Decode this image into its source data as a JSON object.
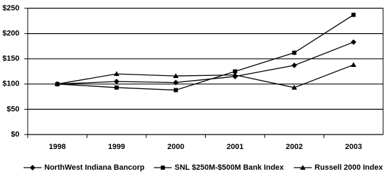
{
  "chart_data": {
    "type": "line",
    "categories": [
      "1998",
      "1999",
      "2000",
      "2001",
      "2002",
      "2003"
    ],
    "series": [
      {
        "name": "NorthWest Indiana Bancorp",
        "color": "#000000",
        "marker": "diamond",
        "values": [
          100,
          105,
          103,
          115,
          137,
          183
        ]
      },
      {
        "name": "SNL $250M-$500M Bank Index",
        "color": "#000000",
        "marker": "square",
        "values": [
          100,
          93,
          88,
          125,
          162,
          237
        ]
      },
      {
        "name": "Russell 2000 Index",
        "color": "#000000",
        "marker": "triangle",
        "values": [
          100,
          120,
          116,
          118,
          93,
          138
        ]
      }
    ],
    "ylim": [
      0,
      250
    ],
    "yticks": [
      {
        "value": 0,
        "label": "$0"
      },
      {
        "value": 50,
        "label": "$50"
      },
      {
        "value": 100,
        "label": "$100"
      },
      {
        "value": 150,
        "label": "$150"
      },
      {
        "value": 200,
        "label": "$200"
      },
      {
        "value": 250,
        "label": "$250"
      }
    ],
    "grid": true,
    "legend": "bottom"
  }
}
